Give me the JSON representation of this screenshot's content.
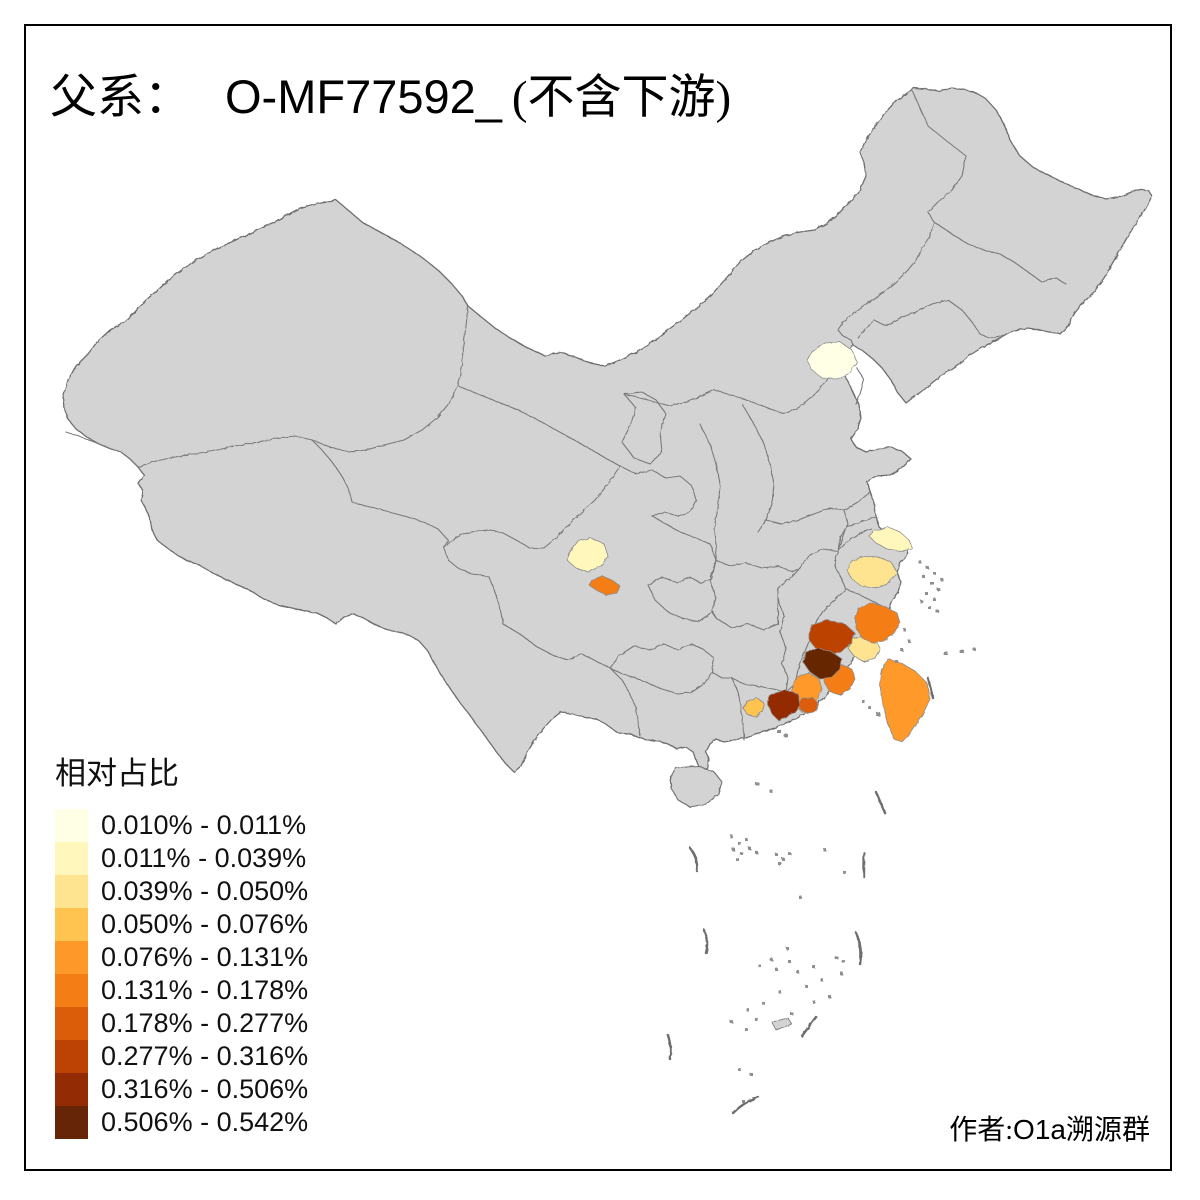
{
  "title": {
    "zh_prefix": "父系：",
    "lineage_code": "O-MF77592_",
    "zh_suffix": "(不含下游)",
    "full": "父系： O-MF77592_ (不含下游)"
  },
  "legend": {
    "title": "相对占比",
    "items": [
      {
        "label": "0.010% - 0.011%",
        "color": "#FFFFE5"
      },
      {
        "label": "0.011% - 0.039%",
        "color": "#FFF7BC"
      },
      {
        "label": "0.039% - 0.050%",
        "color": "#FEE391"
      },
      {
        "label": "0.050% - 0.076%",
        "color": "#FEC44F"
      },
      {
        "label": "0.076% - 0.131%",
        "color": "#FE9929"
      },
      {
        "label": "0.131% - 0.178%",
        "color": "#F57D15"
      },
      {
        "label": "0.178% - 0.277%",
        "color": "#DB5D0A"
      },
      {
        "label": "0.277% - 0.316%",
        "color": "#BC4303"
      },
      {
        "label": "0.316% - 0.506%",
        "color": "#932B04"
      },
      {
        "label": "0.506% - 0.542%",
        "color": "#662506"
      }
    ]
  },
  "attribution": {
    "zh_prefix": "作者:",
    "group_lat": "O1a",
    "group_zh": "溯源群",
    "full": "作者:O1a溯源群"
  },
  "map": {
    "land_color": "#D3D3D3",
    "border_color": "#7A7A7A",
    "sea_color": "#FFFFFF"
  },
  "chart_data": {
    "type": "choropleth-map",
    "title": "父系： O-MF77592_ (不含下游)",
    "legend_title": "相对占比",
    "unit": "%",
    "no_data_color": "#D3D3D3",
    "classes": [
      {
        "range": "0.010% - 0.011%",
        "color": "#FFFFE5"
      },
      {
        "range": "0.011% - 0.039%",
        "color": "#FFF7BC"
      },
      {
        "range": "0.039% - 0.050%",
        "color": "#FEE391"
      },
      {
        "range": "0.050% - 0.076%",
        "color": "#FEC44F"
      },
      {
        "range": "0.076% - 0.131%",
        "color": "#FE9929"
      },
      {
        "range": "0.131% - 0.178%",
        "color": "#F57D15"
      },
      {
        "range": "0.178% - 0.277%",
        "color": "#DB5D0A"
      },
      {
        "range": "0.277% - 0.316%",
        "color": "#BC4303"
      },
      {
        "range": "0.316% - 0.506%",
        "color": "#932B04"
      },
      {
        "range": "0.506% - 0.542%",
        "color": "#662506"
      }
    ],
    "regions": [
      {
        "id": "beijing-area",
        "class_index": 0,
        "value_range": "0.010% - 0.011%"
      },
      {
        "id": "shanghai-area",
        "class_index": 1,
        "value_range": "0.011% - 0.039%"
      },
      {
        "id": "chengdu-area",
        "class_index": 1,
        "value_range": "0.011% - 0.039%"
      },
      {
        "id": "central-zhejiang",
        "class_index": 2,
        "value_range": "0.039% - 0.050%"
      },
      {
        "id": "fuzhou-area",
        "class_index": 2,
        "value_range": "0.039% - 0.050%"
      },
      {
        "id": "west-guangdong",
        "class_index": 3,
        "value_range": "0.050% - 0.076%"
      },
      {
        "id": "southwest-fujian",
        "class_index": 4,
        "value_range": "0.076% - 0.131%"
      },
      {
        "id": "taiwan",
        "class_index": 4,
        "value_range": "0.076% - 0.131%"
      },
      {
        "id": "south-sichuan",
        "class_index": 5,
        "value_range": "0.131% - 0.178%"
      },
      {
        "id": "northeast-fujian",
        "class_index": 5,
        "value_range": "0.131% - 0.178%"
      },
      {
        "id": "southeast-fujian",
        "class_index": 5,
        "value_range": "0.131% - 0.178%"
      },
      {
        "id": "chaoshan-area",
        "class_index": 6,
        "value_range": "0.178% - 0.277%"
      },
      {
        "id": "north-central-fujian",
        "class_index": 7,
        "value_range": "0.277% - 0.316%"
      },
      {
        "id": "east-guangdong",
        "class_index": 8,
        "value_range": "0.316% - 0.506%"
      },
      {
        "id": "west-central-fujian",
        "class_index": 9,
        "value_range": "0.506% - 0.542%"
      }
    ]
  }
}
